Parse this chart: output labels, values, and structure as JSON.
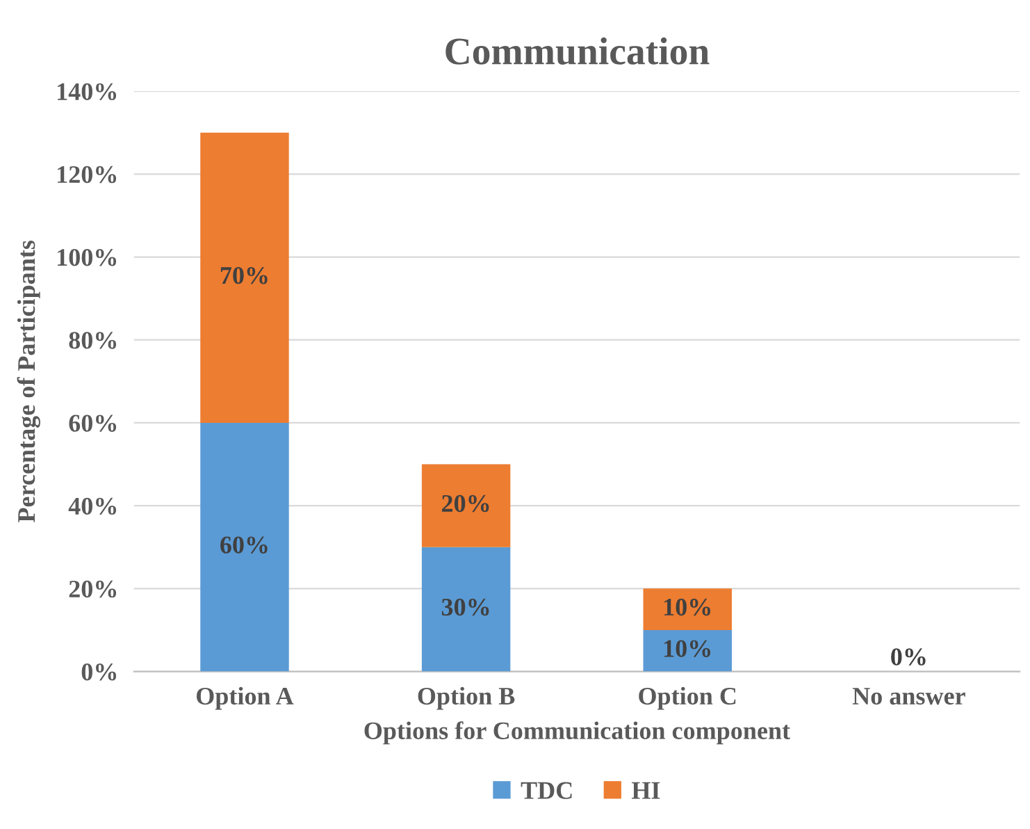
{
  "chart_data": {
    "type": "bar",
    "title": "Communication",
    "xlabel": "Options for Communication component",
    "ylabel": "Percentage of Participants",
    "categories": [
      "Option A",
      "Option B",
      "Option C",
      "No answer"
    ],
    "stacked": true,
    "series": [
      {
        "name": "TDC",
        "color": "#5b9bd5",
        "values": [
          60,
          30,
          10,
          0
        ],
        "value_labels": [
          "60%",
          "30%",
          "10%",
          "0%"
        ]
      },
      {
        "name": "HI",
        "color": "#ed7d31",
        "values": [
          70,
          20,
          10,
          0
        ],
        "value_labels": [
          "70%",
          "20%",
          "10%",
          null
        ]
      }
    ],
    "ylim": [
      0,
      140
    ],
    "yticks": [
      {
        "value": 0,
        "label": "0%"
      },
      {
        "value": 20,
        "label": "20%"
      },
      {
        "value": 40,
        "label": "40%"
      },
      {
        "value": 60,
        "label": "60%"
      },
      {
        "value": 80,
        "label": "80%"
      },
      {
        "value": 100,
        "label": "100%"
      },
      {
        "value": 120,
        "label": "120%"
      },
      {
        "value": 140,
        "label": "140%"
      }
    ],
    "grid": "y",
    "legend": "bottom"
  }
}
